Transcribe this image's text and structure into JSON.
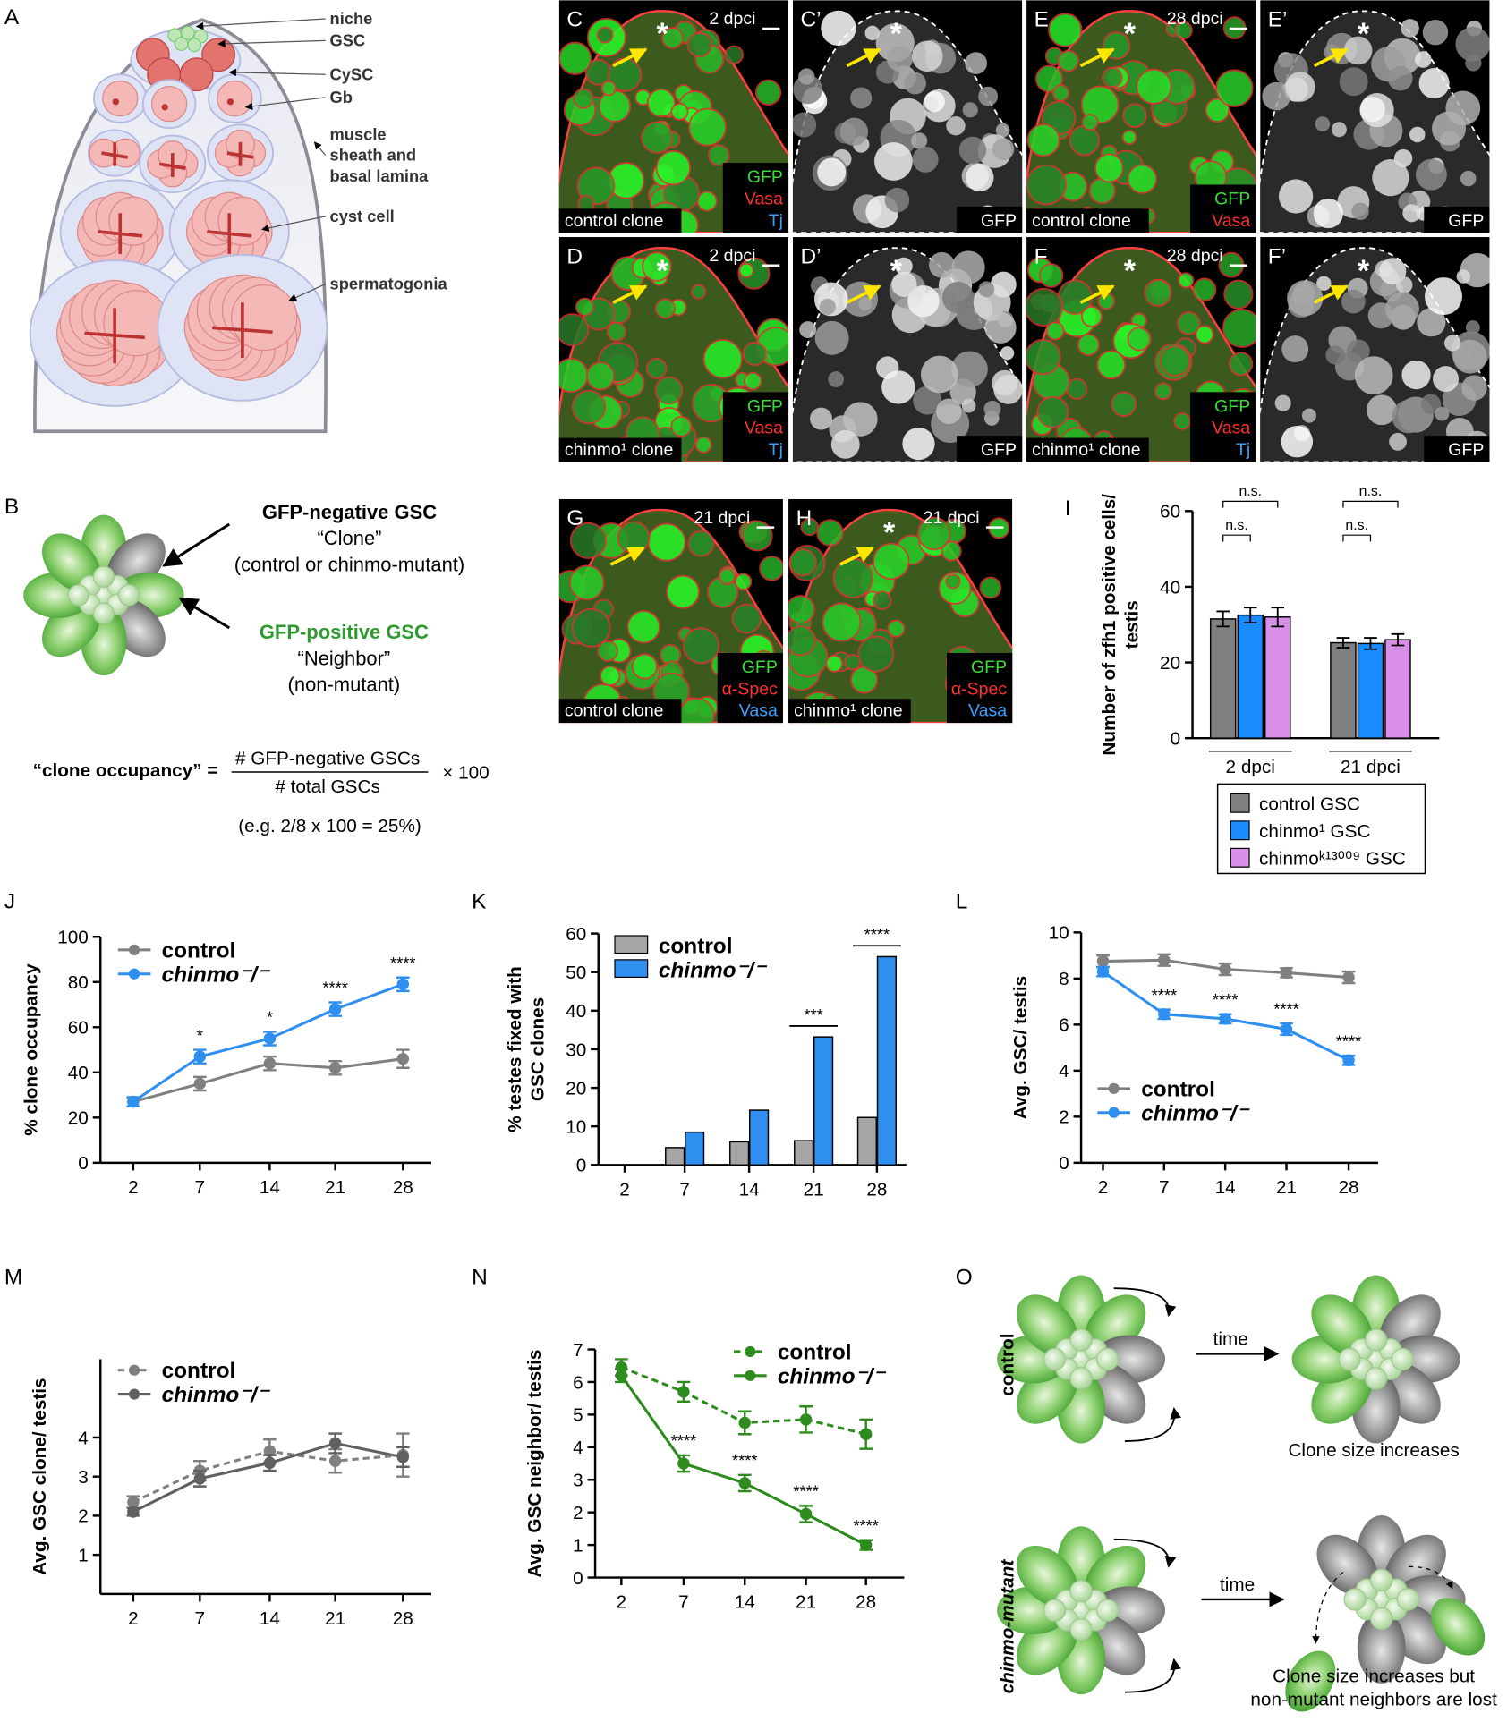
{
  "panel_labels": [
    "A",
    "B",
    "I",
    "J",
    "K",
    "L",
    "M",
    "N",
    "O"
  ],
  "diagram_a": {
    "labels": [
      "niche",
      "GSC",
      "CySC",
      "Gb",
      "muscle",
      "sheath and",
      "basal lamina",
      "cyst cell",
      "spermatogonia"
    ]
  },
  "micrographs": [
    {
      "label": "C",
      "time": "2 dpci",
      "marker": "*",
      "mode": "color",
      "channels": [
        {
          "name": "GFP",
          "color": "#3ddc3d"
        },
        {
          "name": "Vasa",
          "color": "#ff3030"
        },
        {
          "name": "Tj",
          "color": "#3aa0ff"
        }
      ],
      "caption": "control clone"
    },
    {
      "label": "C’",
      "marker": "*",
      "mode": "gray",
      "channels": [
        {
          "name": "GFP",
          "color": "#ffffff"
        }
      ]
    },
    {
      "label": "E",
      "time": "28 dpci",
      "marker": "*",
      "mode": "color",
      "channels": [
        {
          "name": "GFP",
          "color": "#3ddc3d"
        },
        {
          "name": "Vasa",
          "color": "#ff3030"
        }
      ],
      "caption": "control clone"
    },
    {
      "label": "E’",
      "marker": "*",
      "mode": "gray",
      "channels": [
        {
          "name": "GFP",
          "color": "#ffffff"
        }
      ]
    },
    {
      "label": "D",
      "time": "2 dpci",
      "marker": "*",
      "mode": "color",
      "channels": [
        {
          "name": "GFP",
          "color": "#3ddc3d"
        },
        {
          "name": "Vasa",
          "color": "#ff3030"
        },
        {
          "name": "Tj",
          "color": "#3aa0ff"
        }
      ],
      "caption": "chinmo¹ clone"
    },
    {
      "label": "D’",
      "marker": "*",
      "mode": "gray",
      "channels": [
        {
          "name": "GFP",
          "color": "#ffffff"
        }
      ]
    },
    {
      "label": "F",
      "time": "28 dpci",
      "marker": "*",
      "mode": "color",
      "channels": [
        {
          "name": "GFP",
          "color": "#3ddc3d"
        },
        {
          "name": "Vasa",
          "color": "#ff3030"
        },
        {
          "name": "Tj",
          "color": "#3aa0ff"
        }
      ],
      "caption": "chinmo¹ clone"
    },
    {
      "label": "F’",
      "marker": "*",
      "mode": "gray",
      "channels": [
        {
          "name": "GFP",
          "color": "#ffffff"
        }
      ]
    },
    {
      "label": "G",
      "time": "21 dpci",
      "mode": "color",
      "channels": [
        {
          "name": "GFP",
          "color": "#3ddc3d"
        },
        {
          "name": "α-Spec",
          "color": "#ff3030"
        },
        {
          "name": "Vasa",
          "color": "#3aa0ff"
        }
      ],
      "caption": "control clone"
    },
    {
      "label": "H",
      "time": "21 dpci",
      "marker": "*",
      "mode": "color",
      "channels": [
        {
          "name": "GFP",
          "color": "#3ddc3d"
        },
        {
          "name": "α-Spec",
          "color": "#ff3030"
        },
        {
          "name": "Vasa",
          "color": "#3aa0ff"
        }
      ],
      "caption": "chinmo¹ clone"
    }
  ],
  "diagram_b": {
    "clone_lines": [
      "GFP-negative GSC",
      "“Clone”",
      "(control or chinmo-mutant)"
    ],
    "neighbor_lines": [
      "GFP-positive GSC",
      "“Neighbor”",
      "(non-mutant)"
    ],
    "formula": {
      "name": "“clone occupancy” =",
      "numerator": "# GFP-negative GSCs",
      "denominator": "# total GSCs",
      "factor": "× 100",
      "example": "(e.g. 2/8 x 100 = 25%)"
    }
  },
  "diagram_o": {
    "row_labels": [
      "control",
      "chinmo-mutant"
    ],
    "arrow_labels": [
      "time",
      "time"
    ],
    "outcomes": [
      "Clone size increases",
      "Clone size increases but",
      "non-mutant neighbors are lost"
    ]
  },
  "chart_data": [
    {
      "type": "bar",
      "ylabel": [
        "Number of zfh1 positive cells/",
        "testis"
      ],
      "categories": [
        "2 dpci",
        "21 dpci"
      ],
      "ylim": [
        0,
        60
      ],
      "yticks": [
        0,
        20,
        40,
        60
      ],
      "series": [
        {
          "name": "control GSC",
          "color": "#7f7f7f",
          "values": [
            31.5,
            25.2
          ],
          "errors": [
            2,
            1.3
          ]
        },
        {
          "name": "chinmo¹ GSC",
          "color": "#1a8cff",
          "values": [
            32.5,
            25
          ],
          "errors": [
            2,
            1.5
          ]
        },
        {
          "name": "chinmoᵏ¹³⁰⁰⁹ GSC",
          "color": "#d98fea",
          "values": [
            32,
            26
          ],
          "errors": [
            2.5,
            1.5
          ]
        }
      ],
      "significance_labels": [
        "n.s.",
        "n.s.",
        "n.s.",
        "n.s."
      ],
      "legend": "bottom"
    },
    {
      "type": "line",
      "ylabel": [
        "% clone occupancy"
      ],
      "categories": [
        "2",
        "7",
        "14",
        "21",
        "28"
      ],
      "ylim": [
        0,
        100
      ],
      "yticks": [
        0,
        20,
        40,
        60,
        80,
        100
      ],
      "series": [
        {
          "name": "control",
          "color": "#808080",
          "values": [
            27,
            35,
            44,
            42,
            46
          ],
          "errors": [
            2,
            3,
            3,
            3,
            4
          ]
        },
        {
          "name": "chinmo⁻/⁻",
          "color": "#2f8ff0",
          "values": [
            27,
            47,
            55,
            68,
            79
          ],
          "errors": [
            2,
            3,
            3,
            3,
            3
          ],
          "significance": [
            null,
            "*",
            "*",
            "****",
            "****"
          ]
        }
      ],
      "legend": "upper left"
    },
    {
      "type": "bar",
      "ylabel": [
        "% testes fixed with",
        "GSC clones"
      ],
      "categories": [
        "2",
        "7",
        "14",
        "21",
        "28"
      ],
      "ylim": [
        0,
        60
      ],
      "yticks": [
        0,
        10,
        20,
        30,
        40,
        50,
        60
      ],
      "series": [
        {
          "name": "control",
          "color": "#a6a6a6",
          "values": [
            0,
            4.5,
            6,
            6.3,
            12.3
          ]
        },
        {
          "name": "chinmo⁻/⁻",
          "color": "#2f8ff0",
          "values": [
            0,
            8.5,
            14.2,
            33.2,
            54
          ],
          "significance": [
            null,
            null,
            null,
            "***",
            "****"
          ]
        }
      ],
      "legend": "upper left"
    },
    {
      "type": "line",
      "ylabel": [
        "Avg. GSC/ testis"
      ],
      "categories": [
        "2",
        "7",
        "14",
        "21",
        "28"
      ],
      "ylim": [
        0,
        10
      ],
      "yticks": [
        0,
        2,
        4,
        6,
        8,
        10
      ],
      "series": [
        {
          "name": "control",
          "color": "#808080",
          "values": [
            8.75,
            8.8,
            8.4,
            8.25,
            8.05
          ],
          "errors": [
            0.25,
            0.25,
            0.25,
            0.2,
            0.25
          ]
        },
        {
          "name": "chinmo⁻/⁻",
          "color": "#2f8ff0",
          "values": [
            8.3,
            6.45,
            6.25,
            5.8,
            4.45
          ],
          "errors": [
            0.2,
            0.2,
            0.2,
            0.25,
            0.2
          ],
          "significance": [
            null,
            "****",
            "****",
            "****",
            "****"
          ]
        }
      ],
      "legend": "lower left"
    },
    {
      "type": "line",
      "ylabel": [
        "Avg. GSC clone/ testis"
      ],
      "categories": [
        "2",
        "7",
        "14",
        "21",
        "28"
      ],
      "ylim": [
        0,
        6
      ],
      "yticks": [
        1,
        2,
        3,
        4
      ],
      "series": [
        {
          "name": "control",
          "color": "#808080",
          "dashed": true,
          "values": [
            2.35,
            3.15,
            3.65,
            3.4,
            3.55
          ],
          "errors": [
            0.15,
            0.25,
            0.3,
            0.3,
            0.55
          ]
        },
        {
          "name": "chinmo⁻/⁻",
          "color": "#606060",
          "values": [
            2.1,
            2.95,
            3.35,
            3.85,
            3.5
          ],
          "errors": [
            0.1,
            0.2,
            0.2,
            0.25,
            0.25
          ]
        }
      ],
      "legend": "upper left"
    },
    {
      "type": "line",
      "ylabel": [
        "Avg. GSC neighbor/ testis"
      ],
      "categories": [
        "2",
        "7",
        "14",
        "21",
        "28"
      ],
      "ylim": [
        0,
        7
      ],
      "yticks": [
        0,
        1,
        2,
        3,
        4,
        5,
        6,
        7
      ],
      "series": [
        {
          "name": "control",
          "color": "#2e8b1e",
          "dashed": true,
          "values": [
            6.45,
            5.7,
            4.75,
            4.85,
            4.4
          ],
          "errors": [
            0.25,
            0.3,
            0.35,
            0.4,
            0.45
          ]
        },
        {
          "name": "chinmo⁻/⁻",
          "color": "#2e8b1e",
          "values": [
            6.2,
            3.5,
            2.9,
            1.95,
            1.0
          ],
          "errors": [
            0.2,
            0.25,
            0.25,
            0.25,
            0.15
          ],
          "significance": [
            null,
            "****",
            "****",
            "****",
            "****"
          ]
        }
      ],
      "legend": "upper right"
    }
  ]
}
